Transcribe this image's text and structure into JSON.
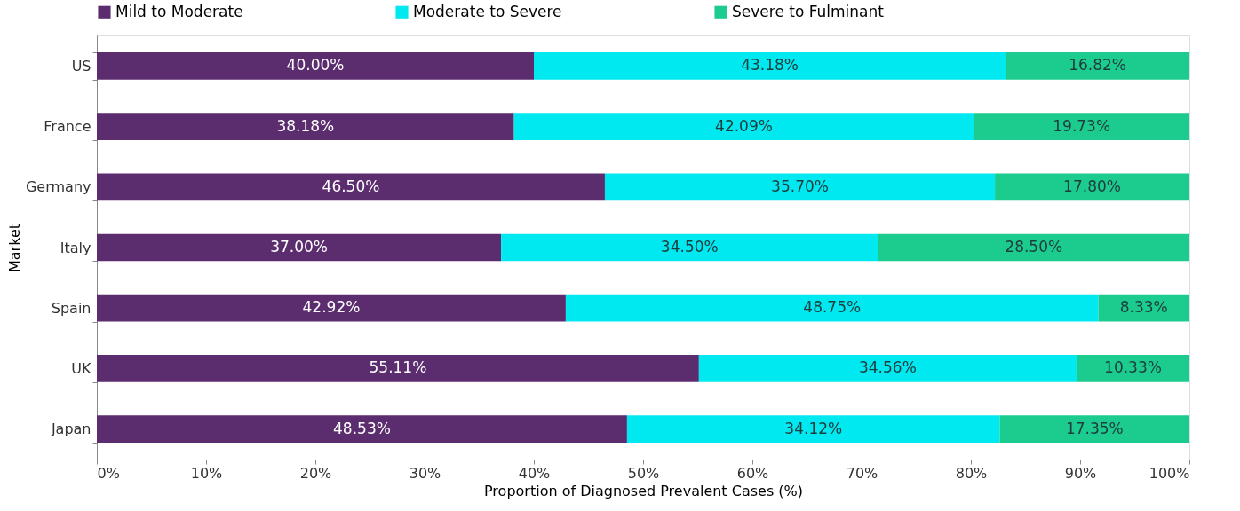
{
  "chart_data": {
    "type": "bar",
    "orientation": "horizontal",
    "stacked": true,
    "xlabel": "Proportion of Diagnosed Prevalent Cases (%)",
    "ylabel": "Market",
    "categories": [
      "US",
      "France",
      "Germany",
      "Italy",
      "Spain",
      "UK",
      "Japan"
    ],
    "series": [
      {
        "name": "Mild to Moderate",
        "color": "#5b2d6e",
        "values": [
          40.0,
          38.18,
          46.5,
          37.0,
          42.92,
          55.11,
          48.53
        ],
        "value_labels": [
          "40.00%",
          "38.18%",
          "46.50%",
          "37.00%",
          "42.92%",
          "55.11%",
          "48.53%"
        ]
      },
      {
        "name": "Moderate to Severe",
        "color": "#00e8f0",
        "values": [
          43.18,
          42.09,
          35.7,
          34.5,
          48.75,
          34.56,
          34.12
        ],
        "value_labels": [
          "43.18%",
          "42.09%",
          "35.70%",
          "34.50%",
          "48.75%",
          "34.56%",
          "34.12%"
        ]
      },
      {
        "name": "Severe to Fulminant",
        "color": "#1ccc8e",
        "values": [
          16.82,
          19.73,
          17.8,
          28.5,
          8.33,
          10.33,
          17.35
        ],
        "value_labels": [
          "16.82%",
          "19.73%",
          "17.80%",
          "28.50%",
          "8.33%",
          "10.33%",
          "17.35%"
        ]
      }
    ],
    "xlim": [
      0,
      100
    ],
    "xticks": [
      {
        "value": 0,
        "label": "0%"
      },
      {
        "value": 10,
        "label": "10%"
      },
      {
        "value": 20,
        "label": "20%"
      },
      {
        "value": 30,
        "label": "30%"
      },
      {
        "value": 40,
        "label": "40%"
      },
      {
        "value": 50,
        "label": "50%"
      },
      {
        "value": 60,
        "label": "60%"
      },
      {
        "value": 70,
        "label": "70%"
      },
      {
        "value": 80,
        "label": "80%"
      },
      {
        "value": 90,
        "label": "90%"
      },
      {
        "value": 100,
        "label": "100%"
      }
    ],
    "legend": "top",
    "grid": false
  }
}
